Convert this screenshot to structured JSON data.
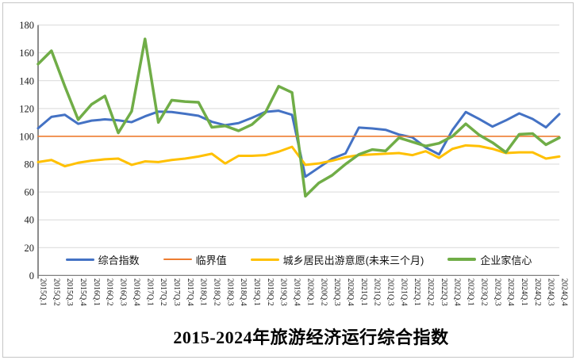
{
  "chart_data": {
    "type": "line",
    "title": "2015-2024年旅游经济运行综合指数",
    "xlabel": "",
    "ylabel": "",
    "ylim": [
      0,
      180
    ],
    "y_ticks": [
      0,
      20,
      40,
      60,
      80,
      100,
      120,
      140,
      160,
      180
    ],
    "grid": true,
    "legend_position": "bottom",
    "categories": [
      "2015Q.1",
      "2015Q.2",
      "2015Q.3",
      "2015Q.4",
      "2016Q.1",
      "2016Q.2",
      "2016Q.3",
      "2016Q.4",
      "2017Q.1",
      "2017Q.2",
      "2017Q.3",
      "2017Q.4",
      "2018Q.1",
      "2018Q.2",
      "2018Q.3",
      "2018Q.4",
      "2019Q.1",
      "2019Q.2",
      "2019Q.3",
      "2019Q.4",
      "2020Q.1",
      "2020Q.2",
      "2020Q.3",
      "2020Q.4",
      "2021Q.1",
      "2021Q.2",
      "2021Q.3",
      "2021Q.4",
      "2022Q.1",
      "2022Q.2",
      "2022Q.3",
      "2022Q.4",
      "2023Q.1",
      "2023Q.2",
      "2023Q.3",
      "2023Q.4",
      "2024Q.1",
      "2024Q.2",
      "2024Q.3",
      "2024Q.4"
    ],
    "series": [
      {
        "key": "composite-index",
        "name": "综合指数",
        "color": "#4472C4",
        "stroke_width": 3,
        "values": [
          105.8,
          114,
          115.5,
          109,
          111.3,
          112.2,
          111.5,
          110.2,
          114.4,
          117.8,
          117.5,
          116.2,
          114.8,
          110.5,
          108,
          109.5,
          113.3,
          117.6,
          118.4,
          115.5,
          71,
          77.5,
          84,
          87.7,
          106.3,
          105.7,
          104.7,
          101.3,
          99.3,
          92,
          87,
          104.5,
          117.5,
          112.5,
          107,
          111.5,
          116.5,
          112.5,
          106.5,
          116
        ]
      },
      {
        "key": "critical-value",
        "name": "临界值",
        "color": "#ED7D31",
        "stroke_width": 1.6,
        "values": [
          100,
          100,
          100,
          100,
          100,
          100,
          100,
          100,
          100,
          100,
          100,
          100,
          100,
          100,
          100,
          100,
          100,
          100,
          100,
          100,
          100,
          100,
          100,
          100,
          100,
          100,
          100,
          100,
          100,
          100,
          100,
          100,
          100,
          100,
          100,
          100,
          100,
          100,
          100,
          100
        ]
      },
      {
        "key": "travel-willingness",
        "name": "城乡居民出游意愿(未来三个月)",
        "color": "#FFC000",
        "stroke_width": 3,
        "values": [
          81.5,
          83,
          78.5,
          81,
          82.5,
          83.5,
          84,
          79.5,
          82,
          81.5,
          83,
          84,
          85.5,
          87.5,
          80.5,
          86,
          86,
          86.5,
          89,
          92.5,
          79.5,
          80.5,
          82.5,
          85,
          86.5,
          87,
          87.5,
          88,
          86.5,
          89.3,
          84.5,
          91,
          93.5,
          93,
          91,
          88,
          88.5,
          88.5,
          84,
          85.5
        ]
      },
      {
        "key": "entrepreneur-confidence",
        "name": "企业家信心",
        "color": "#70AD47",
        "stroke_width": 3.5,
        "values": [
          152,
          161.5,
          136,
          112,
          123,
          129,
          102.5,
          118,
          170,
          110,
          126,
          125,
          124.5,
          106.5,
          107.5,
          104,
          108.5,
          117,
          136,
          131.5,
          57,
          66.5,
          72,
          80,
          87,
          90.5,
          89.5,
          99,
          96,
          93,
          95,
          100,
          109,
          101,
          95.5,
          88.5,
          101.5,
          102,
          94,
          99
        ]
      }
    ]
  },
  "style_tokens": {
    "gridline_color": "#d9d9d9",
    "axis_color": "#7f7f7f",
    "tick_label_color": "#1a1a1a",
    "background": "#ffffff"
  }
}
